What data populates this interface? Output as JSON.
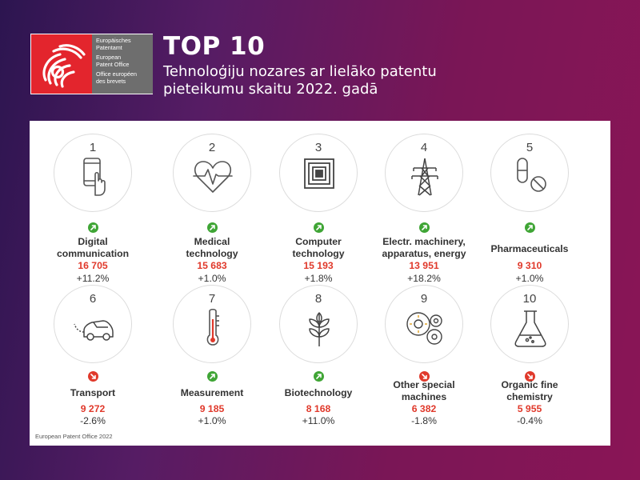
{
  "logo": {
    "lines": [
      "Europäisches",
      "Patentamt",
      "European",
      "Patent Office",
      "Office européen",
      "des brevets"
    ],
    "colors": {
      "red": "#e3252d",
      "gray": "#6e6e6e"
    }
  },
  "header": {
    "title": "TOP 10",
    "subtitle": "Tehnoloģiju nozares ar lielāko patentu pieteikumu skaitu 2022. gadā"
  },
  "colors": {
    "up": "#3fa535",
    "down": "#e0392b",
    "value": "#e0392b"
  },
  "items": [
    {
      "rank": "1",
      "name1": "Digital",
      "name2": "communication",
      "value": "16 705",
      "change": "+11.2%",
      "trend": "up",
      "icon": "smartphone-tap-icon"
    },
    {
      "rank": "2",
      "name1": "Medical",
      "name2": "technology",
      "value": "15 683",
      "change": "+1.0%",
      "trend": "up",
      "icon": "heartbeat-icon"
    },
    {
      "rank": "3",
      "name1": "Computer",
      "name2": "technology",
      "value": "15 193",
      "change": "+1.8%",
      "trend": "up",
      "icon": "chip-icon"
    },
    {
      "rank": "4",
      "name1": "Electr. machinery,",
      "name2": "apparatus, energy",
      "value": "13 951",
      "change": "+18.2%",
      "trend": "up",
      "icon": "power-pylon-icon"
    },
    {
      "rank": "5",
      "name1": "Pharmaceuticals",
      "name2": "",
      "value": "9 310",
      "change": "+1.0%",
      "trend": "up",
      "icon": "pill-icon"
    },
    {
      "rank": "6",
      "name1": "Transport",
      "name2": "",
      "value": "9 272",
      "change": "-2.6%",
      "trend": "down",
      "icon": "electric-car-icon"
    },
    {
      "rank": "7",
      "name1": "Measurement",
      "name2": "",
      "value": "9 185",
      "change": "+1.0%",
      "trend": "up",
      "icon": "thermometer-icon"
    },
    {
      "rank": "8",
      "name1": "Biotechnology",
      "name2": "",
      "value": "8 168",
      "change": "+11.0%",
      "trend": "up",
      "icon": "plant-icon"
    },
    {
      "rank": "9",
      "name1": "Other special",
      "name2": "machines",
      "value": "6 382",
      "change": "-1.8%",
      "trend": "down",
      "icon": "machine-gears-icon"
    },
    {
      "rank": "10",
      "name1": "Organic fine",
      "name2": "chemistry",
      "value": "5 955",
      "change": "-0.4%",
      "trend": "down",
      "icon": "flask-icon"
    }
  ],
  "footer": "European Patent Office 2022"
}
